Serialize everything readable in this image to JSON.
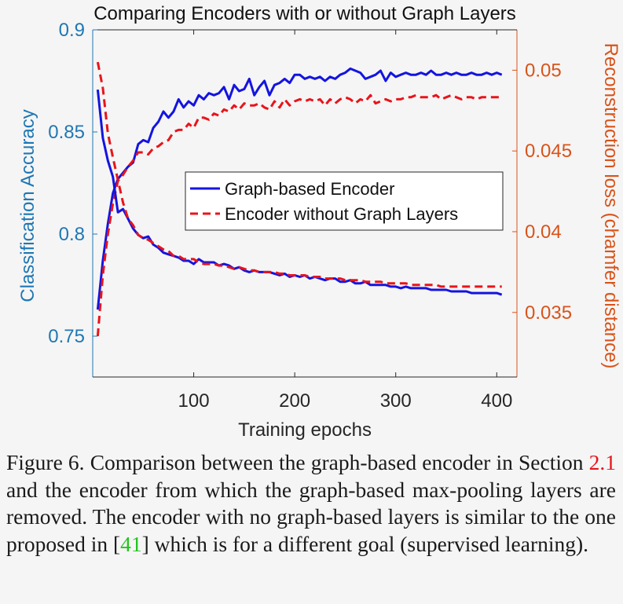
{
  "chart_data": {
    "type": "line",
    "title": "Comparing Encoders with or without Graph Layers",
    "xlabel": "Training epochs",
    "ylabel_left": "Classification Accuracy",
    "ylabel_right": "Reconstruction loss (chamfer distance)",
    "xlim": [
      0,
      420
    ],
    "ylim_left": [
      0.73,
      0.9
    ],
    "ylim_right": [
      0.031,
      0.0525
    ],
    "x_ticks": [
      "100",
      "200",
      "300",
      "400"
    ],
    "y_left_ticks": [
      "0.75",
      "0.8",
      "0.85",
      "0.9"
    ],
    "y_right_ticks": [
      "0.035",
      "0.04",
      "0.045",
      "0.05"
    ],
    "grid": false,
    "legend_position": "center-right",
    "colors": {
      "left_axis": "#1f77b4",
      "right_axis": "#d95319",
      "graph": "#1414e0",
      "nograph": "#e8141b"
    },
    "series": [
      {
        "name": "Graph-based Encoder",
        "axis": "left",
        "style": "solid",
        "x": [
          5,
          10,
          15,
          20,
          25,
          30,
          35,
          40,
          45,
          50,
          55,
          60,
          65,
          70,
          75,
          80,
          85,
          90,
          95,
          100,
          105,
          110,
          115,
          120,
          125,
          130,
          135,
          140,
          145,
          150,
          155,
          160,
          165,
          170,
          175,
          180,
          185,
          190,
          195,
          200,
          205,
          210,
          215,
          220,
          225,
          230,
          235,
          240,
          245,
          250,
          255,
          260,
          265,
          270,
          275,
          280,
          285,
          290,
          295,
          300,
          305,
          310,
          315,
          320,
          325,
          330,
          335,
          340,
          345,
          350,
          355,
          360,
          365,
          370,
          375,
          380,
          385,
          390,
          395,
          400,
          405
        ],
        "values": [
          0.763,
          0.787,
          0.805,
          0.82,
          0.827,
          0.83,
          0.833,
          0.835,
          0.844,
          0.846,
          0.845,
          0.852,
          0.855,
          0.86,
          0.857,
          0.86,
          0.866,
          0.862,
          0.865,
          0.863,
          0.868,
          0.866,
          0.869,
          0.868,
          0.869,
          0.872,
          0.866,
          0.873,
          0.87,
          0.871,
          0.876,
          0.868,
          0.872,
          0.875,
          0.868,
          0.873,
          0.874,
          0.876,
          0.874,
          0.878,
          0.878,
          0.876,
          0.877,
          0.876,
          0.877,
          0.875,
          0.877,
          0.876,
          0.878,
          0.879,
          0.881,
          0.88,
          0.879,
          0.876,
          0.877,
          0.878,
          0.88,
          0.875,
          0.879,
          0.877,
          0.878,
          0.879,
          0.878,
          0.878,
          0.879,
          0.878,
          0.88,
          0.878,
          0.878,
          0.879,
          0.878,
          0.879,
          0.878,
          0.878,
          0.879,
          0.878,
          0.878,
          0.879,
          0.878,
          0.879,
          0.878
        ]
      },
      {
        "name": "Encoder without Graph Layers",
        "axis": "left",
        "style": "dashed",
        "x": [
          5,
          10,
          15,
          20,
          25,
          30,
          35,
          40,
          45,
          50,
          55,
          60,
          65,
          70,
          75,
          80,
          85,
          90,
          95,
          100,
          105,
          110,
          115,
          120,
          125,
          130,
          135,
          140,
          145,
          150,
          155,
          160,
          165,
          170,
          175,
          180,
          185,
          190,
          195,
          200,
          205,
          210,
          215,
          220,
          225,
          230,
          235,
          240,
          245,
          250,
          255,
          260,
          265,
          270,
          275,
          280,
          285,
          290,
          295,
          300,
          305,
          310,
          315,
          320,
          325,
          330,
          335,
          340,
          345,
          350,
          355,
          360,
          365,
          370,
          375,
          380,
          385,
          390,
          395,
          400,
          405
        ],
        "values": [
          0.75,
          0.78,
          0.8,
          0.815,
          0.826,
          0.829,
          0.833,
          0.836,
          0.84,
          0.84,
          0.839,
          0.842,
          0.843,
          0.845,
          0.846,
          0.85,
          0.851,
          0.851,
          0.854,
          0.852,
          0.857,
          0.857,
          0.856,
          0.859,
          0.858,
          0.861,
          0.86,
          0.863,
          0.861,
          0.864,
          0.863,
          0.863,
          0.864,
          0.862,
          0.861,
          0.865,
          0.862,
          0.866,
          0.863,
          0.865,
          0.866,
          0.865,
          0.866,
          0.865,
          0.866,
          0.863,
          0.866,
          0.864,
          0.866,
          0.867,
          0.866,
          0.864,
          0.866,
          0.865,
          0.868,
          0.864,
          0.865,
          0.866,
          0.865,
          0.866,
          0.866,
          0.867,
          0.867,
          0.868,
          0.867,
          0.867,
          0.867,
          0.868,
          0.866,
          0.867,
          0.868,
          0.867,
          0.866,
          0.867,
          0.867,
          0.866,
          0.867,
          0.867,
          0.867,
          0.867,
          0.867
        ]
      },
      {
        "name": "Graph-based Encoder",
        "axis": "right",
        "style": "solid",
        "x": [
          5,
          10,
          15,
          20,
          25,
          30,
          35,
          40,
          45,
          50,
          55,
          60,
          65,
          70,
          75,
          80,
          85,
          90,
          95,
          100,
          105,
          110,
          115,
          120,
          125,
          130,
          135,
          140,
          145,
          150,
          155,
          160,
          165,
          170,
          175,
          180,
          185,
          190,
          195,
          200,
          205,
          210,
          215,
          220,
          225,
          230,
          235,
          240,
          245,
          250,
          255,
          260,
          265,
          270,
          275,
          280,
          285,
          290,
          295,
          300,
          305,
          310,
          315,
          320,
          325,
          330,
          335,
          340,
          345,
          350,
          355,
          360,
          365,
          370,
          375,
          380,
          385,
          390,
          395,
          400,
          405
        ],
        "values": [
          0.0488,
          0.0458,
          0.0444,
          0.0434,
          0.0412,
          0.0414,
          0.0408,
          0.0402,
          0.0398,
          0.0396,
          0.0397,
          0.0392,
          0.039,
          0.0387,
          0.0386,
          0.0385,
          0.0384,
          0.0382,
          0.0382,
          0.038,
          0.0383,
          0.0381,
          0.0381,
          0.0381,
          0.0379,
          0.038,
          0.0379,
          0.0377,
          0.0378,
          0.0376,
          0.0375,
          0.0376,
          0.0375,
          0.0375,
          0.0375,
          0.0374,
          0.0373,
          0.0374,
          0.0372,
          0.0373,
          0.0372,
          0.0373,
          0.0371,
          0.0372,
          0.0371,
          0.037,
          0.0371,
          0.0371,
          0.0369,
          0.0369,
          0.037,
          0.0368,
          0.0368,
          0.0369,
          0.0367,
          0.0367,
          0.0367,
          0.0367,
          0.0366,
          0.0366,
          0.0365,
          0.0366,
          0.0365,
          0.0365,
          0.0365,
          0.0365,
          0.0364,
          0.0364,
          0.0364,
          0.0364,
          0.0363,
          0.0363,
          0.0363,
          0.0363,
          0.0362,
          0.0362,
          0.0362,
          0.0362,
          0.0362,
          0.0362,
          0.0361
        ]
      },
      {
        "name": "Encoder without Graph Layers",
        "axis": "right",
        "style": "dashed",
        "x": [
          5,
          10,
          15,
          20,
          25,
          30,
          35,
          40,
          45,
          50,
          55,
          60,
          65,
          70,
          75,
          80,
          85,
          90,
          95,
          100,
          105,
          110,
          115,
          120,
          125,
          130,
          135,
          140,
          145,
          150,
          155,
          160,
          165,
          170,
          175,
          180,
          185,
          190,
          195,
          200,
          205,
          210,
          215,
          220,
          225,
          230,
          235,
          240,
          245,
          250,
          255,
          260,
          265,
          270,
          275,
          280,
          285,
          290,
          295,
          300,
          305,
          310,
          315,
          320,
          325,
          330,
          335,
          340,
          345,
          350,
          355,
          360,
          365,
          370,
          375,
          380,
          385,
          390,
          395,
          400,
          405
        ],
        "values": [
          0.0505,
          0.0489,
          0.0461,
          0.0446,
          0.0432,
          0.0418,
          0.0408,
          0.0404,
          0.0398,
          0.0396,
          0.0395,
          0.0393,
          0.0391,
          0.0389,
          0.0388,
          0.0385,
          0.0385,
          0.0383,
          0.0383,
          0.0383,
          0.0381,
          0.038,
          0.038,
          0.038,
          0.0379,
          0.0379,
          0.0378,
          0.0377,
          0.0378,
          0.0377,
          0.0376,
          0.0376,
          0.0375,
          0.0375,
          0.0375,
          0.0375,
          0.0374,
          0.0374,
          0.0373,
          0.0373,
          0.0373,
          0.0373,
          0.0372,
          0.0372,
          0.0372,
          0.0371,
          0.0371,
          0.0371,
          0.0371,
          0.037,
          0.037,
          0.037,
          0.037,
          0.0369,
          0.0369,
          0.0369,
          0.0369,
          0.0368,
          0.0368,
          0.0368,
          0.0368,
          0.0368,
          0.0367,
          0.0367,
          0.0367,
          0.0367,
          0.0367,
          0.0367,
          0.0366,
          0.0366,
          0.0366,
          0.0366,
          0.0366,
          0.0366,
          0.0366,
          0.0366,
          0.0366,
          0.0366,
          0.0366,
          0.0366,
          0.0366
        ]
      }
    ]
  },
  "caption": {
    "text_1": "Figure 6. Comparison between the graph-based encoder in Section ",
    "ref_1": "2.1",
    "text_2": " and the encoder from which the graph-based max-pooling layers are removed.  The encoder with no graph-based layers is similar to the one proposed in [",
    "ref_2": "41",
    "text_3": "] which is for a different goal (supervised learning)."
  }
}
